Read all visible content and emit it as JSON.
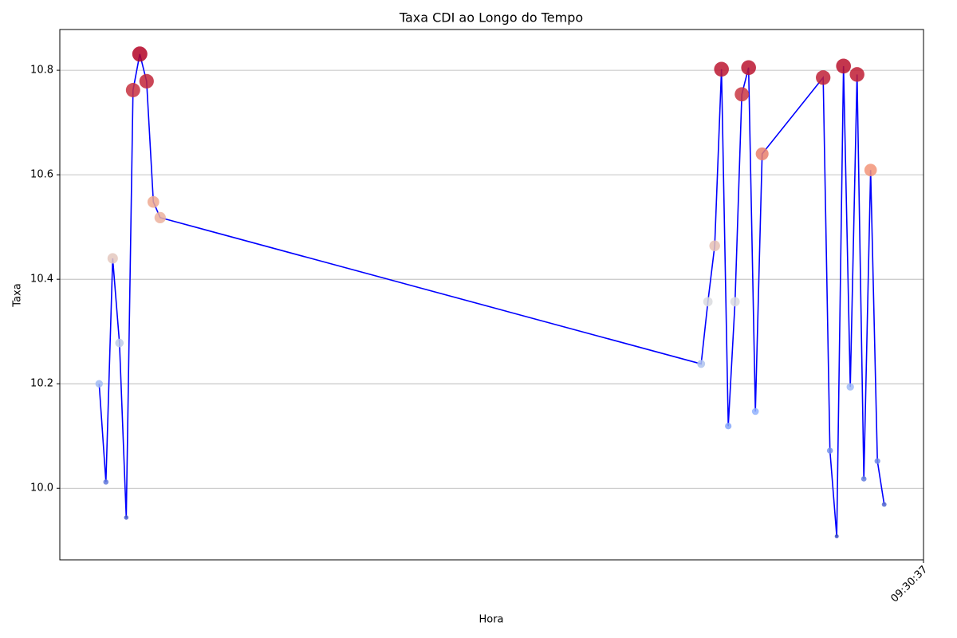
{
  "chart_data": {
    "type": "line_scatter",
    "title": "Taxa CDI ao Longo do Tempo",
    "x_label": "Hora",
    "y_label": "Taxa",
    "x": [
      34115.4,
      34116.4,
      34117.4,
      34118.4,
      34119.4,
      34120.4,
      34121.4,
      34122.4,
      34123.4,
      34124.4,
      34204.2,
      34205.2,
      34206.2,
      34207.2,
      34208.2,
      34209.2,
      34210.2,
      34211.2,
      34212.2,
      34213.2,
      34222.2,
      34223.2,
      34224.2,
      34225.2,
      34226.2,
      34227.2,
      34228.2,
      34229.2,
      34230.2,
      34231.2
    ],
    "values": [
      10.2,
      10.012,
      10.44,
      10.278,
      9.944,
      10.762,
      10.831,
      10.779,
      10.548,
      10.518,
      10.238,
      10.357,
      10.464,
      10.802,
      10.119,
      10.357,
      10.754,
      10.805,
      10.147,
      10.64,
      10.786,
      10.072,
      9.908,
      10.808,
      10.194,
      10.792,
      10.018,
      10.609,
      10.052,
      9.969
    ],
    "line_color": "#0000ff",
    "colormap": "coolwarm",
    "xlim": [
      34109.6,
      34237
    ],
    "xticks": [
      {
        "value": 34237,
        "label": "09:30:37"
      }
    ],
    "ylim": [
      9.863,
      10.878
    ],
    "yticks": [
      {
        "value": 10,
        "label": "10.0"
      },
      10.2,
      10.4,
      10.6,
      10.8
    ],
    "grid": "y"
  }
}
